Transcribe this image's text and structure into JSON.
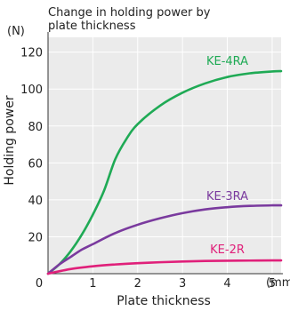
{
  "chart_data": {
    "type": "line",
    "title_lines": [
      "Change in holding power by",
      "plate thickness"
    ],
    "xlabel": "Plate thickness",
    "ylabel": "Holding power",
    "x_unit": "(mm)",
    "y_unit": "(N)",
    "xlim": [
      0,
      5.2
    ],
    "ylim": [
      0,
      128
    ],
    "xticks": [
      0,
      1,
      2,
      3,
      4,
      5
    ],
    "xtick_labels": [
      "0",
      "1",
      "2",
      "3",
      "4",
      "5"
    ],
    "yticks": [
      20,
      40,
      60,
      80,
      100,
      120
    ],
    "ytick_labels": [
      "20",
      "40",
      "60",
      "80",
      "100",
      "120"
    ],
    "grid": true,
    "series": [
      {
        "name": "KE-4RA",
        "color": "#1faa55",
        "x": [
          0,
          0.25,
          0.5,
          0.75,
          1.0,
          1.25,
          1.5,
          1.75,
          2.0,
          2.5,
          3.0,
          3.5,
          4.0,
          4.5,
          5.0,
          5.2
        ],
        "y": [
          0,
          5,
          12,
          21,
          32,
          45,
          62,
          73,
          81,
          91,
          98,
          103,
          106.5,
          108.5,
          109.5,
          109.7
        ]
      },
      {
        "name": "KE-3RA",
        "color": "#7a3a9e",
        "x": [
          0,
          0.25,
          0.5,
          0.75,
          1.0,
          1.5,
          2.0,
          2.5,
          3.0,
          3.5,
          4.0,
          4.5,
          5.0,
          5.2
        ],
        "y": [
          0,
          5,
          9,
          13,
          16,
          22,
          26.5,
          30,
          32.8,
          34.8,
          36,
          36.7,
          37,
          37
        ]
      },
      {
        "name": "KE-2R",
        "color": "#e0207a",
        "x": [
          0,
          0.5,
          1.0,
          1.5,
          2.0,
          2.5,
          3.0,
          3.5,
          4.0,
          4.5,
          5.0,
          5.2
        ],
        "y": [
          0,
          2.5,
          4,
          5,
          5.7,
          6.2,
          6.6,
          6.9,
          7.0,
          7.1,
          7.2,
          7.2
        ]
      }
    ]
  }
}
